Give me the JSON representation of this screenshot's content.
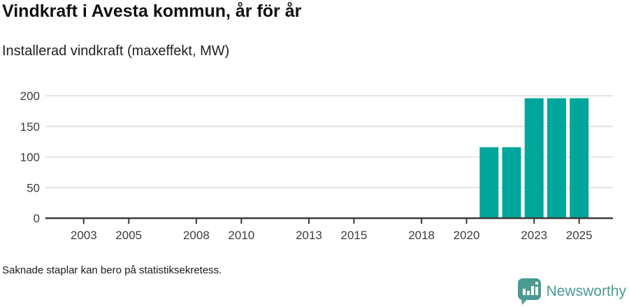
{
  "header": {
    "title": "Vindkraft i Avesta kommun, år för år",
    "subtitle": "Installerad vindkraft (maxeffekt, MW)"
  },
  "footer": {
    "note": "Saknade staplar kan bero på statistiksekretess.",
    "brand_name": "Newsworthy"
  },
  "colors": {
    "bar": "#00a69b",
    "brand": "#4a9b94",
    "axis": "#3a3a3a",
    "grid": "#e4e4e4",
    "tick_text": "#3d3d3d"
  },
  "chart_data": {
    "type": "bar",
    "title": "Vindkraft i Avesta kommun, år för år",
    "subtitle": "Installerad vindkraft (maxeffekt, MW)",
    "ylabel": "Installerad vindkraft (maxeffekt, MW)",
    "xlabel": "",
    "x": [
      2021,
      2022,
      2023,
      2024,
      2025
    ],
    "values": [
      116,
      116,
      196,
      196,
      196
    ],
    "unit": "MW",
    "xticks": [
      2003,
      2005,
      2008,
      2010,
      2013,
      2015,
      2018,
      2020,
      2023,
      2025
    ],
    "yticks": [
      0,
      50,
      100,
      150,
      200
    ],
    "xlim": [
      2001.3,
      2026.5
    ],
    "ylim": [
      0,
      200
    ],
    "grid": true,
    "legend": false,
    "note": "Bars missing for years before 2021 (may be due to statistical confidentiality)"
  }
}
